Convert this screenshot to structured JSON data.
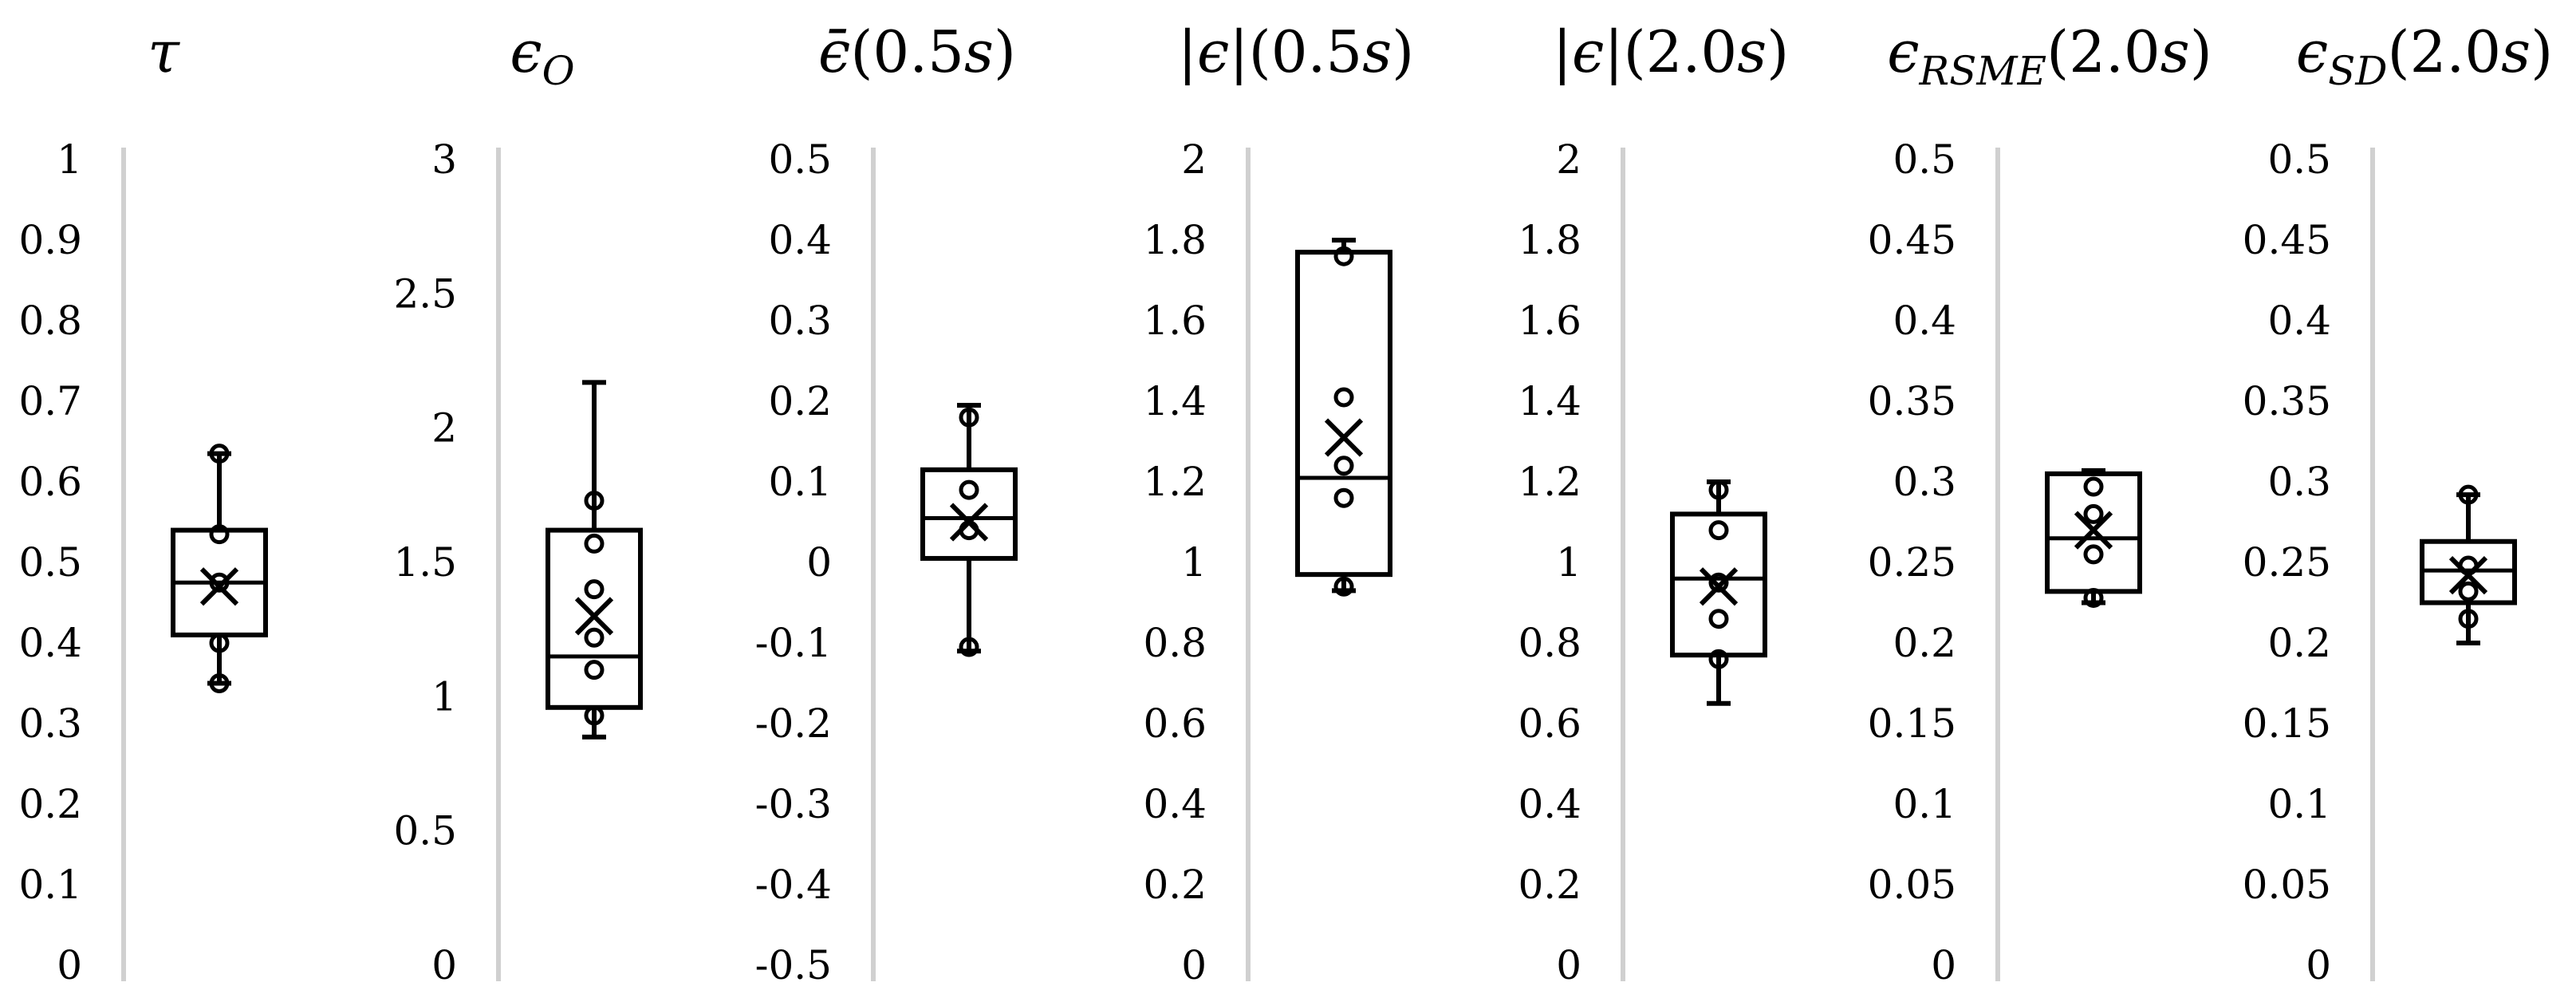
{
  "chart_data": [
    {
      "type": "box",
      "title": "τ",
      "ylim": [
        0,
        1
      ],
      "ticks": [
        "0",
        "0.1",
        "0.2",
        "0.3",
        "0.4",
        "0.5",
        "0.6",
        "0.7",
        "0.8",
        "0.9",
        "1"
      ],
      "box": {
        "min": 0.35,
        "q1": 0.41,
        "median": 0.475,
        "q3": 0.54,
        "max": 0.635,
        "mean": 0.47
      },
      "points": [
        0.535,
        0.475,
        0.4,
        0.35,
        0.635
      ]
    },
    {
      "type": "box",
      "title": "ϵO",
      "ylim": [
        0,
        3
      ],
      "ticks": [
        "0",
        "0.5",
        "1",
        "1.5",
        "2",
        "2.5",
        "3"
      ],
      "box": {
        "min": 0.85,
        "q1": 0.96,
        "median": 1.15,
        "q3": 1.62,
        "max": 2.17,
        "mean": 1.3
      },
      "points": [
        1.73,
        1.57,
        1.4,
        1.22,
        1.1,
        0.93
      ]
    },
    {
      "type": "box",
      "title": "ϵ̄(0.5s)",
      "ylim": [
        -0.5,
        0.5
      ],
      "ticks": [
        "-0.5",
        "-0.4",
        "-0.3",
        "-0.2",
        "-0.1",
        "0",
        "0.1",
        "0.2",
        "0.3",
        "0.4",
        "0.5"
      ],
      "box": {
        "min": -0.11,
        "q1": 0.005,
        "median": 0.055,
        "q3": 0.115,
        "max": 0.195,
        "mean": 0.05
      },
      "points": [
        0.18,
        0.09,
        0.04,
        -0.105
      ]
    },
    {
      "type": "box",
      "title": "|ϵ|(0.5s)",
      "ylim": [
        0,
        2
      ],
      "ticks": [
        "0",
        "0.2",
        "0.4",
        "0.6",
        "0.8",
        "1",
        "1.2",
        "1.4",
        "1.6",
        "1.8",
        "2"
      ],
      "box": {
        "min": 0.93,
        "q1": 0.97,
        "median": 1.21,
        "q3": 1.77,
        "max": 1.8,
        "mean": 1.31
      },
      "points": [
        1.76,
        1.41,
        1.24,
        1.16,
        0.94
      ]
    },
    {
      "type": "box",
      "title": "|ϵ|(2.0s)",
      "ylim": [
        0,
        2
      ],
      "ticks": [
        "0",
        "0.2",
        "0.4",
        "0.6",
        "0.8",
        "1",
        "1.2",
        "1.4",
        "1.6",
        "1.8",
        "2"
      ],
      "box": {
        "min": 0.65,
        "q1": 0.77,
        "median": 0.96,
        "q3": 1.12,
        "max": 1.2,
        "mean": 0.94
      },
      "points": [
        1.18,
        1.08,
        0.95,
        0.86,
        0.76
      ]
    },
    {
      "type": "box",
      "title": "ϵRSME(2.0s)",
      "ylim": [
        0,
        0.5
      ],
      "ticks": [
        "0",
        "0.05",
        "0.1",
        "0.15",
        "0.2",
        "0.25",
        "0.3",
        "0.35",
        "0.4",
        "0.45",
        "0.5"
      ],
      "box": {
        "min": 0.225,
        "q1": 0.232,
        "median": 0.265,
        "q3": 0.305,
        "max": 0.307,
        "mean": 0.27
      },
      "points": [
        0.297,
        0.28,
        0.255,
        0.228
      ]
    },
    {
      "type": "box",
      "title": "ϵSD(2.0s)",
      "ylim": [
        0,
        0.5
      ],
      "ticks": [
        "0",
        "0.05",
        "0.1",
        "0.15",
        "0.2",
        "0.25",
        "0.3",
        "0.35",
        "0.4",
        "0.45",
        "0.5"
      ],
      "box": {
        "min": 0.2,
        "q1": 0.225,
        "median": 0.245,
        "q3": 0.263,
        "max": 0.292,
        "mean": 0.242
      },
      "points": [
        0.292,
        0.248,
        0.232,
        0.215
      ]
    }
  ]
}
